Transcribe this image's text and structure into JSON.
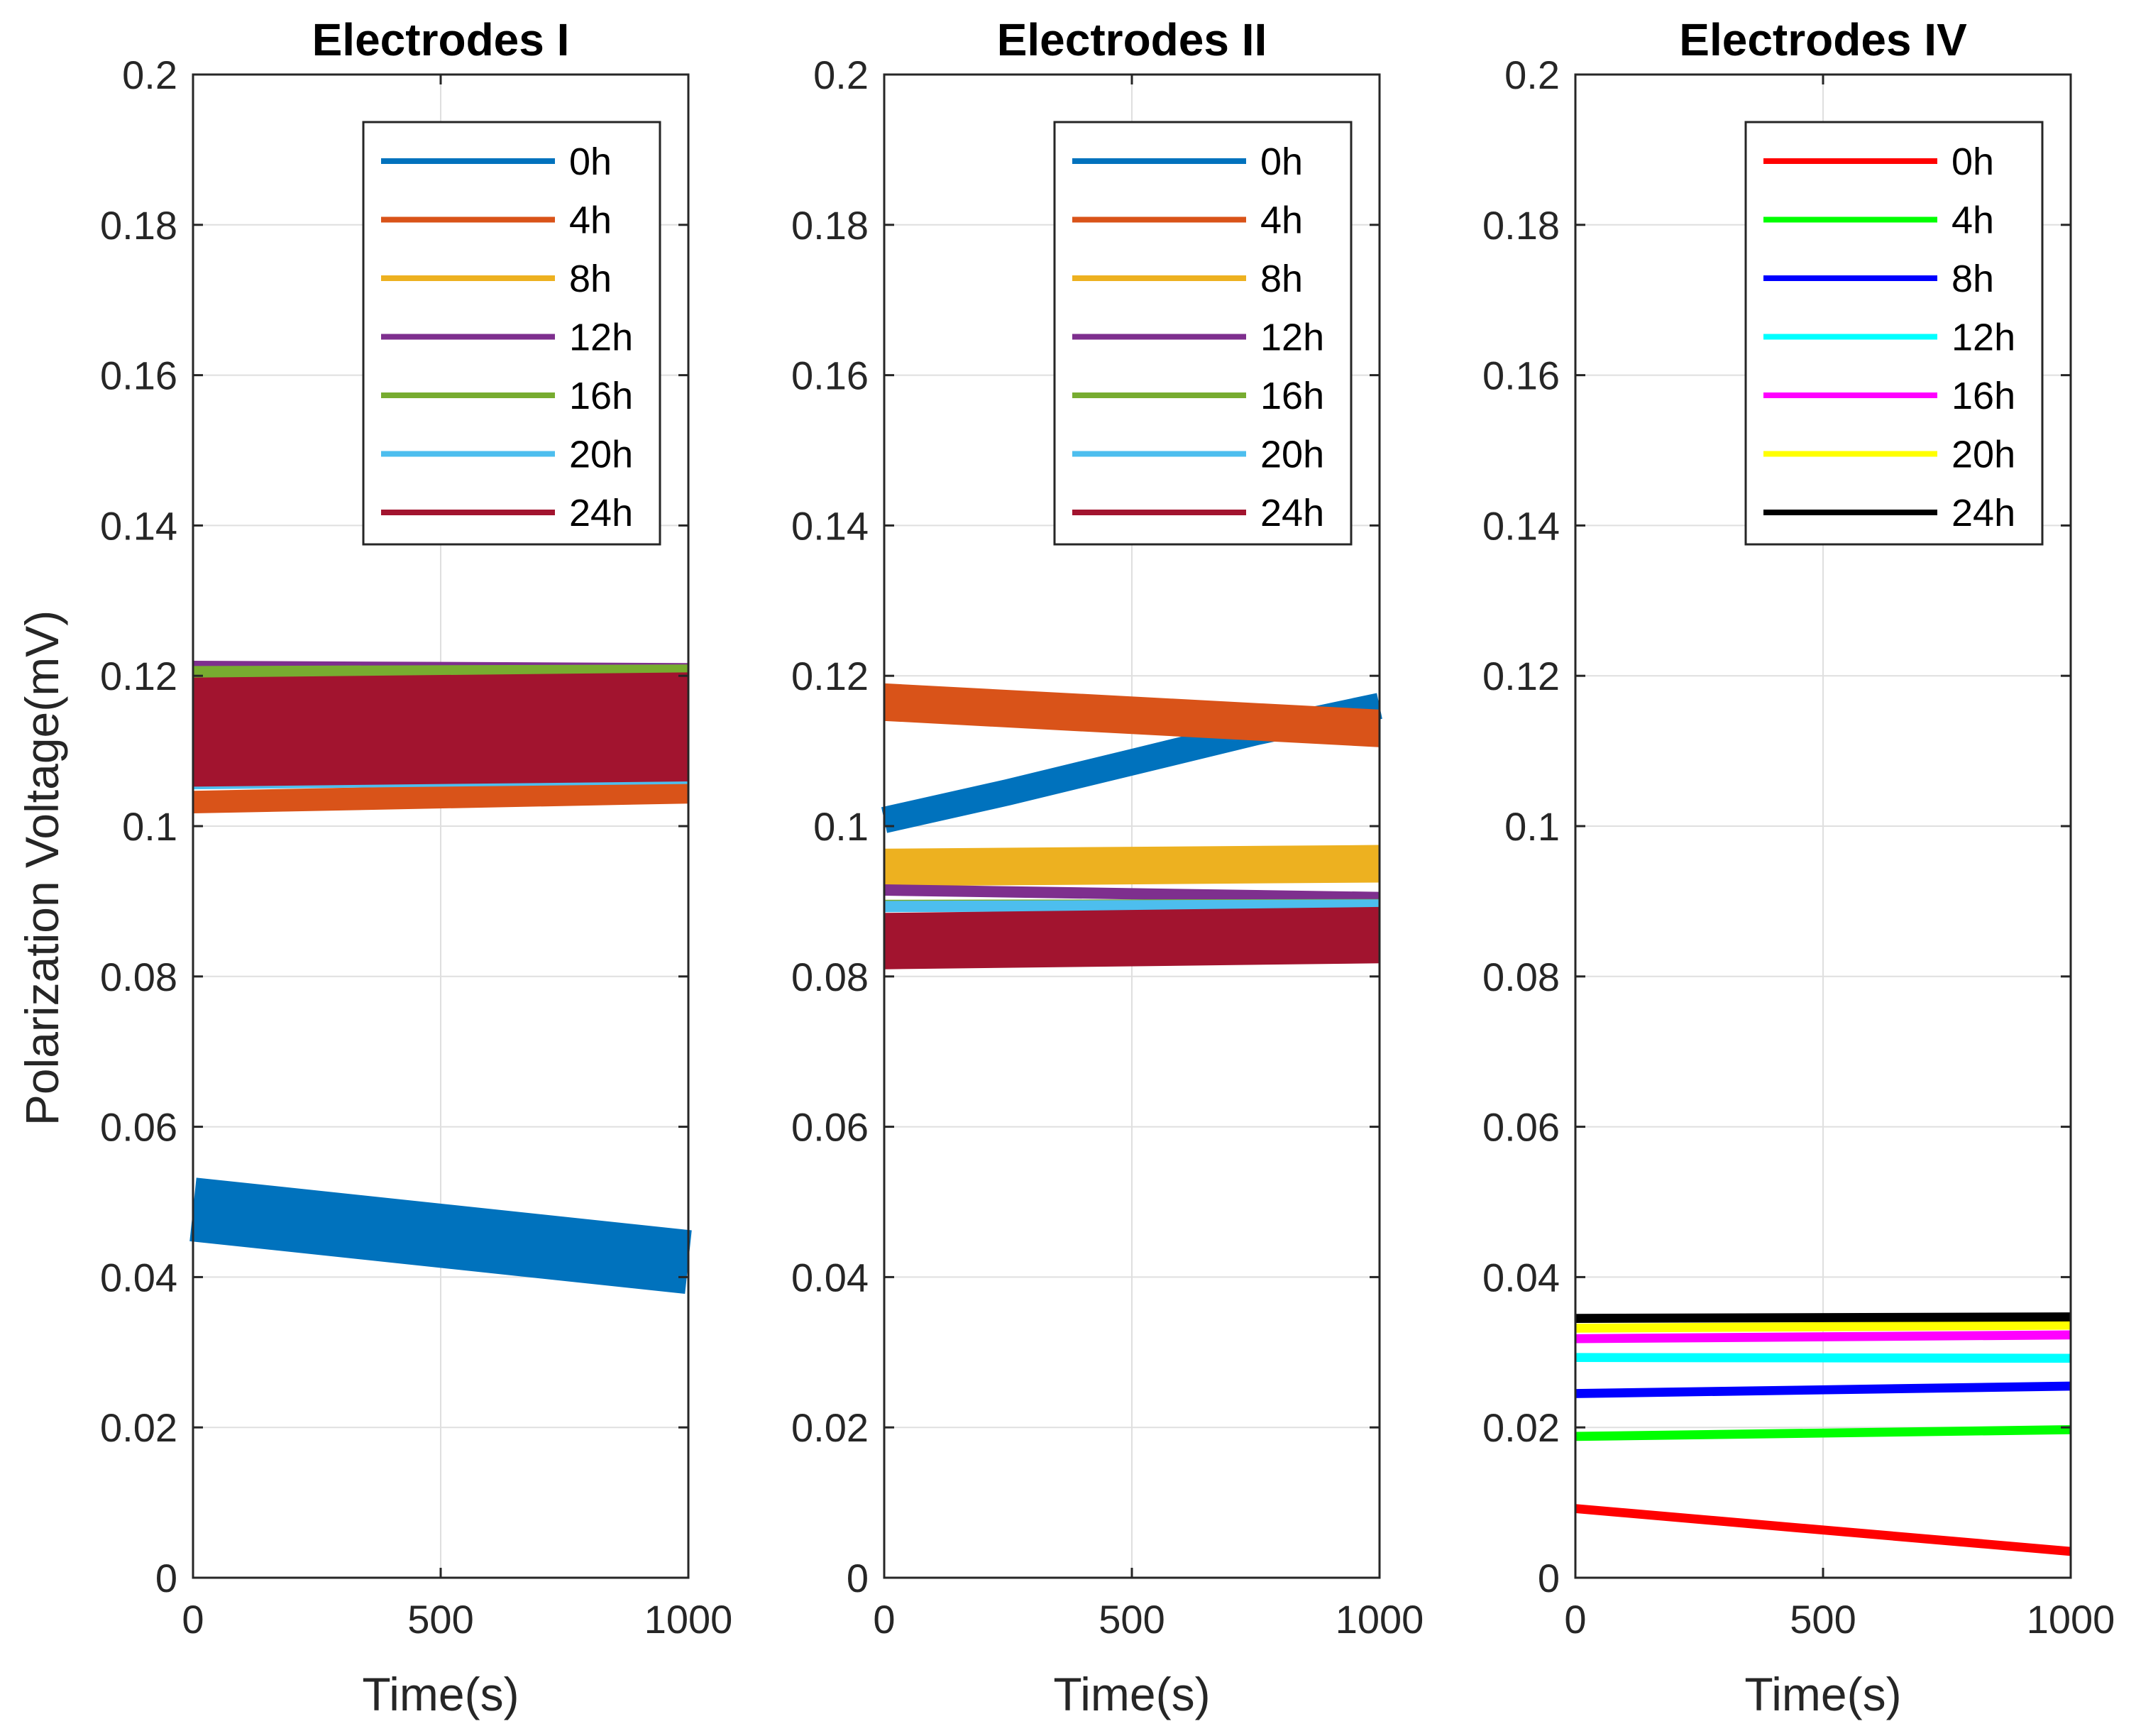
{
  "chart_data": {
    "type": "line",
    "shared_ylabel": "Polarization Voltage(mV)",
    "panels": [
      {
        "title": "Electrodes I",
        "xlabel": "Time(s)",
        "xlim": [
          0,
          1000
        ],
        "ylim": [
          0,
          0.2
        ],
        "xticks": [
          0,
          500,
          1000
        ],
        "xtick_labels": [
          "0",
          "500",
          "1000"
        ],
        "yticks": [
          0,
          0.02,
          0.04,
          0.06,
          0.08,
          0.1,
          0.12,
          0.14,
          0.16,
          0.18,
          0.2
        ],
        "ytick_labels": [
          "0",
          "0.02",
          "0.04",
          "0.06",
          "0.08",
          "0.1",
          "0.12",
          "0.14",
          "0.16",
          "0.18",
          "0.2"
        ],
        "grid": true,
        "legend_position": "top-right",
        "series": [
          {
            "name": "0h",
            "color": "#0072BD",
            "x": [
              0,
              1000
            ],
            "y": [
              0.049,
              0.042
            ],
            "band": 0.0085
          },
          {
            "name": "4h",
            "color": "#D95319",
            "x": [
              0,
              1000
            ],
            "y": [
              0.1032,
              0.1045
            ],
            "band": 0.003
          },
          {
            "name": "8h",
            "color": "#EDB120",
            "x": [
              0,
              1000
            ],
            "y": [
              0.112,
              0.113
            ],
            "band": 0.012
          },
          {
            "name": "12h",
            "color": "#7E2F8E",
            "x": [
              0,
              1000
            ],
            "y": [
              0.1215,
              0.1212
            ],
            "band": 0.001
          },
          {
            "name": "16h",
            "color": "#77AC30",
            "x": [
              0,
              1000
            ],
            "y": [
              0.1203,
              0.1205
            ],
            "band": 0.002
          },
          {
            "name": "20h",
            "color": "#4DBEEE",
            "x": [
              0,
              1000
            ],
            "y": [
              0.1055,
              0.1062
            ],
            "band": 0.0012
          },
          {
            "name": "24h",
            "color": "#A2142F",
            "x": [
              0,
              1000
            ],
            "y": [
              0.1125,
              0.1132
            ],
            "band": 0.0145
          }
        ]
      },
      {
        "title": "Electrodes II",
        "xlabel": "Time(s)",
        "xlim": [
          0,
          1000
        ],
        "ylim": [
          0,
          0.2
        ],
        "xticks": [
          0,
          500,
          1000
        ],
        "xtick_labels": [
          "0",
          "500",
          "1000"
        ],
        "yticks": [
          0,
          0.02,
          0.04,
          0.06,
          0.08,
          0.1,
          0.12,
          0.14,
          0.16,
          0.18,
          0.2
        ],
        "ytick_labels": [
          "0",
          "0.02",
          "0.04",
          "0.06",
          "0.08",
          "0.1",
          "0.12",
          "0.14",
          "0.16",
          "0.18",
          "0.2"
        ],
        "grid": true,
        "legend_position": "top-right",
        "series": [
          {
            "name": "0h",
            "color": "#0072BD",
            "x": [
              0,
              250,
              500,
              750,
              1000
            ],
            "y": [
              0.1008,
              0.1045,
              0.1085,
              0.1125,
              0.116
            ],
            "band": 0.0035
          },
          {
            "name": "4h",
            "color": "#D95319",
            "x": [
              0,
              1000
            ],
            "y": [
              0.1165,
              0.113
            ],
            "band": 0.005
          },
          {
            "name": "8h",
            "color": "#EDB120",
            "x": [
              0,
              1000
            ],
            "y": [
              0.0945,
              0.095
            ],
            "band": 0.005
          },
          {
            "name": "12h",
            "color": "#7E2F8E",
            "x": [
              0,
              1000
            ],
            "y": [
              0.0915,
              0.0905
            ],
            "band": 0.0015
          },
          {
            "name": "16h",
            "color": "#77AC30",
            "x": [
              0,
              1000
            ],
            "y": [
              0.0897,
              0.0898
            ],
            "band": 0.001
          },
          {
            "name": "20h",
            "color": "#4DBEEE",
            "x": [
              0,
              1000
            ],
            "y": [
              0.0893,
              0.0895
            ],
            "band": 0.0015
          },
          {
            "name": "24h",
            "color": "#A2142F",
            "x": [
              0,
              1000
            ],
            "y": [
              0.0847,
              0.0855
            ],
            "band": 0.0075
          }
        ]
      },
      {
        "title": "Electrodes IV",
        "xlabel": "Time(s)",
        "xlim": [
          0,
          1000
        ],
        "ylim": [
          0,
          0.2
        ],
        "xticks": [
          0,
          500,
          1000
        ],
        "xtick_labels": [
          "0",
          "500",
          "1000"
        ],
        "yticks": [
          0,
          0.02,
          0.04,
          0.06,
          0.08,
          0.1,
          0.12,
          0.14,
          0.16,
          0.18,
          0.2
        ],
        "ytick_labels": [
          "0",
          "0.02",
          "0.04",
          "0.06",
          "0.08",
          "0.1",
          "0.12",
          "0.14",
          "0.16",
          "0.18",
          "0.2"
        ],
        "grid": true,
        "legend_position": "top-right",
        "series": [
          {
            "name": "0h",
            "color": "#FF0000",
            "x": [
              0,
              1000
            ],
            "y": [
              0.0092,
              0.0035
            ],
            "band": 0.0012
          },
          {
            "name": "4h",
            "color": "#00FF00",
            "x": [
              0,
              1000
            ],
            "y": [
              0.0188,
              0.0197
            ],
            "band": 0.0012
          },
          {
            "name": "8h",
            "color": "#0000FF",
            "x": [
              0,
              1000
            ],
            "y": [
              0.0245,
              0.0255
            ],
            "band": 0.0012
          },
          {
            "name": "12h",
            "color": "#00FFFF",
            "x": [
              0,
              1000
            ],
            "y": [
              0.0293,
              0.0292
            ],
            "band": 0.0012
          },
          {
            "name": "16h",
            "color": "#FF00FF",
            "x": [
              0,
              1000
            ],
            "y": [
              0.0318,
              0.0323
            ],
            "band": 0.0012
          },
          {
            "name": "20h",
            "color": "#FFFF00",
            "x": [
              0,
              1000
            ],
            "y": [
              0.0332,
              0.0336
            ],
            "band": 0.0012
          },
          {
            "name": "24h",
            "color": "#000000",
            "x": [
              0,
              1000
            ],
            "y": [
              0.0345,
              0.0347
            ],
            "band": 0.0012
          }
        ]
      }
    ]
  }
}
